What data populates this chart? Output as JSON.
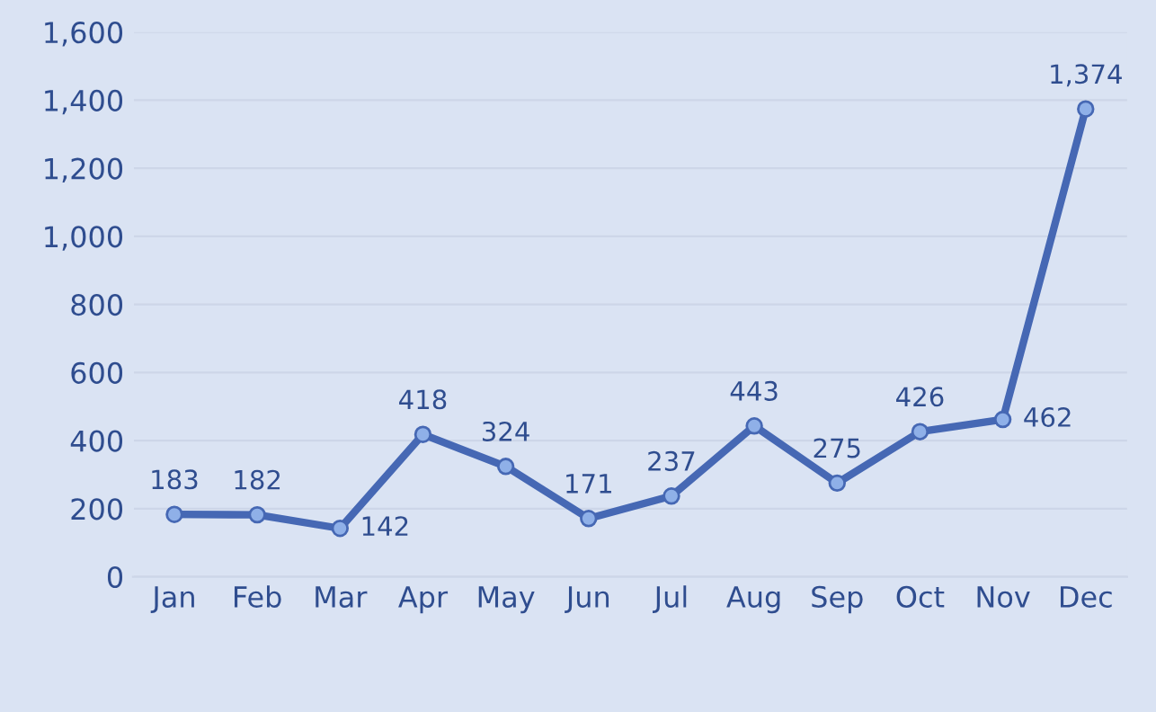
{
  "chart_data": {
    "type": "line",
    "categories": [
      "Jan",
      "Feb",
      "Mar",
      "Apr",
      "May",
      "Jun",
      "Jul",
      "Aug",
      "Sep",
      "Oct",
      "Nov",
      "Dec"
    ],
    "series": [
      {
        "color": "#4668b4",
        "values": [
          183,
          182,
          142,
          418,
          324,
          171,
          237,
          443,
          275,
          426,
          462,
          1374
        ],
        "value_labels": [
          "183",
          "182",
          "142",
          "418",
          "324",
          "171",
          "237",
          "443",
          "275",
          "426",
          "462",
          "1,374"
        ]
      }
    ],
    "ylim": [
      0,
      1600
    ],
    "yticks": [
      0,
      200,
      400,
      600,
      800,
      {
        "value": 1000,
        "label": "1,000"
      },
      {
        "value": 1200,
        "label": "1,200"
      },
      {
        "value": 1400,
        "label": "1,400"
      },
      {
        "value": 1600,
        "label": "1,600"
      }
    ],
    "grid": "y",
    "marker": "circle",
    "line_style": "solid"
  }
}
